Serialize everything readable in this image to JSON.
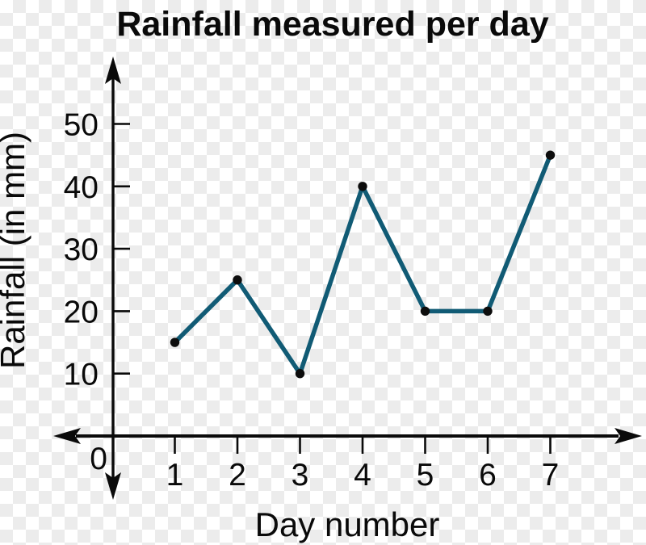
{
  "title": "Rainfall measured per day",
  "chart_data": {
    "type": "line",
    "title": "Rainfall measured per day",
    "xlabel": "Day number",
    "ylabel": "Rainfall (in mm)",
    "x": [
      1,
      2,
      3,
      4,
      5,
      6,
      7
    ],
    "x_tick_labels": [
      "1",
      "2",
      "3",
      "4",
      "5",
      "6",
      "7"
    ],
    "values": [
      15,
      25,
      10,
      40,
      20,
      20,
      45
    ],
    "y_ticks": [
      10,
      20,
      30,
      40,
      50
    ],
    "origin_label": "0",
    "ylim": [
      0,
      55
    ],
    "xlim": [
      0,
      8
    ],
    "grid": false,
    "legend": "none",
    "marker": "filled-circle",
    "colors": {
      "line": "#115b75",
      "point": "#0d0d0d",
      "axis": "#0a0a0a",
      "text": "#0a0a0a",
      "canvas_checker_light": "#ffffff",
      "canvas_checker_dark": "#ececec"
    }
  }
}
